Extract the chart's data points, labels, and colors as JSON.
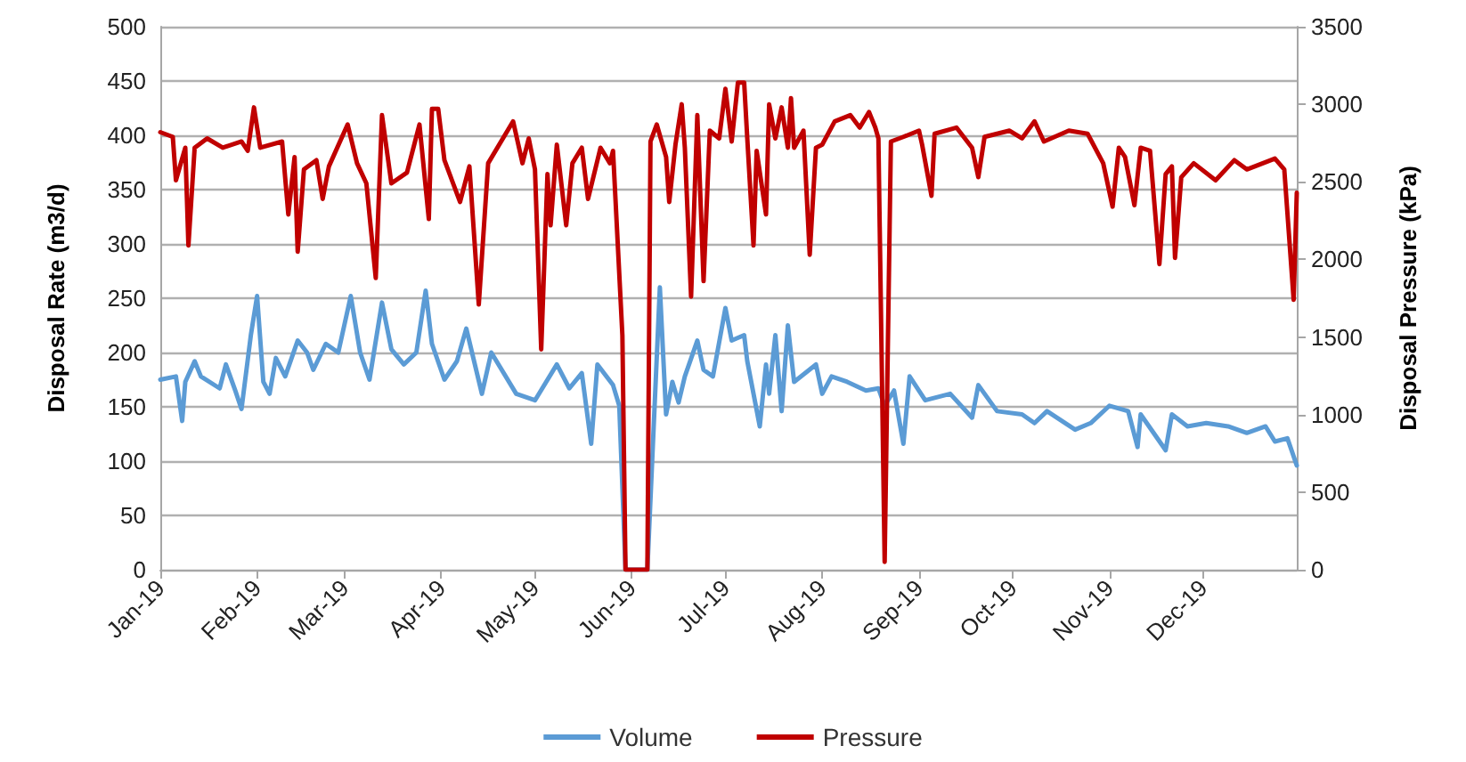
{
  "chart_data": {
    "type": "line",
    "xlabel": null,
    "ylabel": "Disposal Rate (m3/d)",
    "y2label": "Disposal Pressure (kPa)",
    "xlim": [
      "2019-01-01",
      "2019-12-31"
    ],
    "xticks": [
      {
        "value": "2019-01-01",
        "label": "Jan-19"
      },
      {
        "value": "2019-02-01",
        "label": "Feb-19"
      },
      {
        "value": "2019-03-01",
        "label": "Mar-19"
      },
      {
        "value": "2019-04-01",
        "label": "Apr-19"
      },
      {
        "value": "2019-05-01",
        "label": "May-19"
      },
      {
        "value": "2019-06-01",
        "label": "Jun-19"
      },
      {
        "value": "2019-07-01",
        "label": "Jul-19"
      },
      {
        "value": "2019-08-01",
        "label": "Aug-19"
      },
      {
        "value": "2019-09-01",
        "label": "Sep-19"
      },
      {
        "value": "2019-10-01",
        "label": "Oct-19"
      },
      {
        "value": "2019-11-01",
        "label": "Nov-19"
      },
      {
        "value": "2019-12-01",
        "label": "Dec-19"
      }
    ],
    "ylim": [
      0,
      500
    ],
    "yticks": [
      0,
      50,
      100,
      150,
      200,
      250,
      300,
      350,
      400,
      450,
      500
    ],
    "y2lim": [
      0,
      3500
    ],
    "y2ticks": [
      0,
      500,
      1000,
      1500,
      2000,
      2500,
      3000,
      3500
    ],
    "grid": "y",
    "legend": "bottom",
    "marker": "none",
    "line_style": "solid",
    "series": [
      {
        "name": "Volume",
        "color": "#5b9bd5",
        "x": [
          "2019-01-01",
          "2019-01-06",
          "2019-01-08",
          "2019-01-09",
          "2019-01-12",
          "2019-01-14",
          "2019-01-20",
          "2019-01-22",
          "2019-01-25",
          "2019-01-27",
          "2019-01-30",
          "2019-02-01",
          "2019-02-03",
          "2019-02-05",
          "2019-02-07",
          "2019-02-10",
          "2019-02-14",
          "2019-02-17",
          "2019-02-19",
          "2019-02-23",
          "2019-02-27",
          "2019-03-03",
          "2019-03-06",
          "2019-03-09",
          "2019-03-13",
          "2019-03-16",
          "2019-03-20",
          "2019-03-24",
          "2019-03-27",
          "2019-03-29",
          "2019-04-02",
          "2019-04-06",
          "2019-04-09",
          "2019-04-14",
          "2019-04-17",
          "2019-04-25",
          "2019-05-01",
          "2019-05-08",
          "2019-05-12",
          "2019-05-16",
          "2019-05-19",
          "2019-05-21",
          "2019-05-26",
          "2019-05-28",
          "2019-05-30",
          "2019-06-06",
          "2019-06-10",
          "2019-06-12",
          "2019-06-14",
          "2019-06-16",
          "2019-06-18",
          "2019-06-22",
          "2019-06-24",
          "2019-06-27",
          "2019-07-01",
          "2019-07-03",
          "2019-07-07",
          "2019-07-08",
          "2019-07-12",
          "2019-07-14",
          "2019-07-15",
          "2019-07-17",
          "2019-07-19",
          "2019-07-21",
          "2019-07-23",
          "2019-07-30",
          "2019-08-01",
          "2019-08-04",
          "2019-08-09",
          "2019-08-15",
          "2019-08-19",
          "2019-08-21",
          "2019-08-24",
          "2019-08-27",
          "2019-08-29",
          "2019-09-03",
          "2019-09-11",
          "2019-09-18",
          "2019-09-20",
          "2019-09-26",
          "2019-10-04",
          "2019-10-08",
          "2019-10-12",
          "2019-10-21",
          "2019-10-26",
          "2019-11-01",
          "2019-11-07",
          "2019-11-10",
          "2019-11-11",
          "2019-11-19",
          "2019-11-21",
          "2019-11-26",
          "2019-12-02",
          "2019-12-09",
          "2019-12-15",
          "2019-12-21",
          "2019-12-24",
          "2019-12-28",
          "2019-12-31"
        ],
        "values": [
          175,
          178,
          137,
          173,
          192,
          178,
          167,
          189,
          165,
          148,
          216,
          252,
          173,
          162,
          195,
          178,
          211,
          200,
          184,
          208,
          200,
          252,
          200,
          175,
          246,
          203,
          189,
          200,
          257,
          208,
          175,
          192,
          222,
          162,
          200,
          162,
          156,
          189,
          167,
          181,
          116,
          189,
          170,
          151,
          0,
          0,
          260,
          143,
          173,
          154,
          178,
          211,
          184,
          178,
          241,
          211,
          216,
          192,
          132,
          189,
          162,
          216,
          146,
          225,
          173,
          189,
          162,
          178,
          173,
          165,
          167,
          151,
          165,
          116,
          178,
          156,
          162,
          140,
          170,
          146,
          143,
          135,
          146,
          129,
          135,
          151,
          146,
          113,
          143,
          110,
          143,
          132,
          135,
          132,
          126,
          132,
          118,
          121,
          96
        ]
      },
      {
        "name": "Pressure",
        "color": "#c00000",
        "axis": "y2",
        "x": [
          "2019-01-01",
          "2019-01-05",
          "2019-01-06",
          "2019-01-09",
          "2019-01-10",
          "2019-01-12",
          "2019-01-16",
          "2019-01-21",
          "2019-01-27",
          "2019-01-29",
          "2019-01-31",
          "2019-02-02",
          "2019-02-09",
          "2019-02-11",
          "2019-02-13",
          "2019-02-14",
          "2019-02-16",
          "2019-02-20",
          "2019-02-22",
          "2019-02-24",
          "2019-03-02",
          "2019-03-05",
          "2019-03-08",
          "2019-03-11",
          "2019-03-13",
          "2019-03-16",
          "2019-03-21",
          "2019-03-25",
          "2019-03-28",
          "2019-03-29",
          "2019-03-31",
          "2019-04-02",
          "2019-04-07",
          "2019-04-10",
          "2019-04-13",
          "2019-04-16",
          "2019-04-24",
          "2019-04-27",
          "2019-04-29",
          "2019-05-01",
          "2019-05-03",
          "2019-05-05",
          "2019-05-06",
          "2019-05-08",
          "2019-05-11",
          "2019-05-13",
          "2019-05-16",
          "2019-05-18",
          "2019-05-22",
          "2019-05-25",
          "2019-05-26",
          "2019-05-29",
          "2019-05-30",
          "2019-06-06",
          "2019-06-07",
          "2019-06-09",
          "2019-06-12",
          "2019-06-13",
          "2019-06-15",
          "2019-06-17",
          "2019-06-18",
          "2019-06-20",
          "2019-06-22",
          "2019-06-24",
          "2019-06-26",
          "2019-06-29",
          "2019-07-01",
          "2019-07-03",
          "2019-07-05",
          "2019-07-07",
          "2019-07-08",
          "2019-07-10",
          "2019-07-11",
          "2019-07-14",
          "2019-07-15",
          "2019-07-17",
          "2019-07-19",
          "2019-07-21",
          "2019-07-22",
          "2019-07-23",
          "2019-07-26",
          "2019-07-28",
          "2019-07-30",
          "2019-08-01",
          "2019-08-05",
          "2019-08-10",
          "2019-08-13",
          "2019-08-16",
          "2019-08-18",
          "2019-08-19",
          "2019-08-21",
          "2019-08-23",
          "2019-08-27",
          "2019-09-01",
          "2019-09-02",
          "2019-09-05",
          "2019-09-06",
          "2019-09-13",
          "2019-09-18",
          "2019-09-20",
          "2019-09-22",
          "2019-09-30",
          "2019-10-04",
          "2019-10-08",
          "2019-10-11",
          "2019-10-19",
          "2019-10-25",
          "2019-10-30",
          "2019-11-02",
          "2019-11-04",
          "2019-11-06",
          "2019-11-09",
          "2019-11-11",
          "2019-11-14",
          "2019-11-17",
          "2019-11-19",
          "2019-11-21",
          "2019-11-22",
          "2019-11-24",
          "2019-11-28",
          "2019-12-05",
          "2019-12-11",
          "2019-12-15",
          "2019-12-24",
          "2019-12-27",
          "2019-12-30",
          "2019-12-31"
        ],
        "values": [
          2820,
          2790,
          2510,
          2720,
          2090,
          2720,
          2780,
          2720,
          2760,
          2700,
          2980,
          2720,
          2760,
          2290,
          2660,
          2050,
          2580,
          2640,
          2390,
          2600,
          2870,
          2620,
          2490,
          1880,
          2930,
          2490,
          2560,
          2870,
          2260,
          2970,
          2970,
          2640,
          2370,
          2600,
          1710,
          2620,
          2890,
          2620,
          2780,
          2580,
          1420,
          2550,
          2220,
          2740,
          2220,
          2620,
          2720,
          2390,
          2720,
          2620,
          2700,
          1510,
          0,
          0,
          2760,
          2870,
          2660,
          2370,
          2740,
          3000,
          2720,
          1760,
          2930,
          1860,
          2830,
          2780,
          3100,
          2760,
          3140,
          3140,
          2780,
          2090,
          2700,
          2290,
          3000,
          2780,
          2980,
          2720,
          3040,
          2720,
          2830,
          2030,
          2720,
          2740,
          2890,
          2930,
          2850,
          2950,
          2850,
          2780,
          50,
          2760,
          2790,
          2830,
          2740,
          2410,
          2810,
          2850,
          2720,
          2530,
          2790,
          2830,
          2780,
          2890,
          2760,
          2830,
          2810,
          2620,
          2340,
          2720,
          2660,
          2350,
          2720,
          2700,
          1970,
          2550,
          2600,
          2010,
          2530,
          2620,
          2510,
          2640,
          2580,
          2650,
          2580,
          1740,
          2430
        ]
      }
    ]
  }
}
